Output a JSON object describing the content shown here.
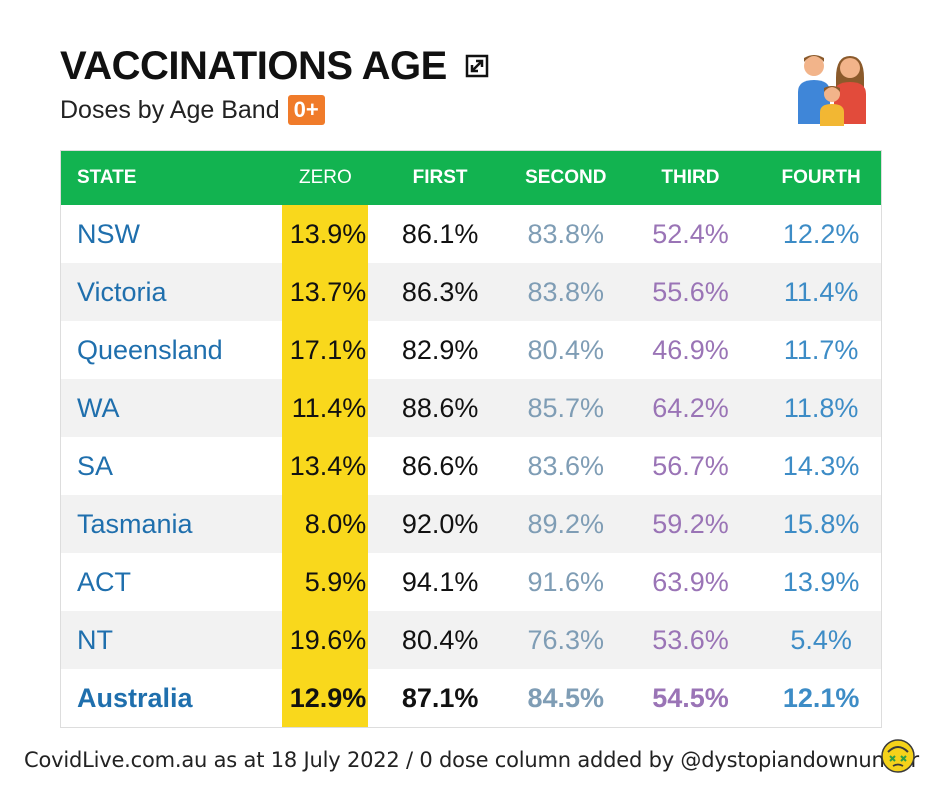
{
  "header": {
    "title": "VACCINATIONS AGE",
    "subtitle": "Doses by Age Band",
    "badge": "0+"
  },
  "icons": {
    "expand": "expand-icon",
    "family": "family-icon",
    "emoji": "dizzy-face-emoji-icon"
  },
  "colors": {
    "header_green": "#12b350",
    "zero_highlight": "#f9d81c",
    "badge_orange": "#f07b2a",
    "state_blue": "#1f6fad",
    "second_grayblue": "#7f9db5",
    "third_purple": "#9a74b6",
    "fourth_blue": "#3d8cc6"
  },
  "table": {
    "columns": [
      "STATE",
      "ZERO",
      "FIRST",
      "SECOND",
      "THIRD",
      "FOURTH"
    ],
    "rows": [
      {
        "state": "NSW",
        "zero": "13.9%",
        "first": "86.1%",
        "second": "83.8%",
        "third": "52.4%",
        "fourth": "12.2%"
      },
      {
        "state": "Victoria",
        "zero": "13.7%",
        "first": "86.3%",
        "second": "83.8%",
        "third": "55.6%",
        "fourth": "11.4%"
      },
      {
        "state": "Queensland",
        "zero": "17.1%",
        "first": "82.9%",
        "second": "80.4%",
        "third": "46.9%",
        "fourth": "11.7%"
      },
      {
        "state": "WA",
        "zero": "11.4%",
        "first": "88.6%",
        "second": "85.7%",
        "third": "64.2%",
        "fourth": "11.8%"
      },
      {
        "state": "SA",
        "zero": "13.4%",
        "first": "86.6%",
        "second": "83.6%",
        "third": "56.7%",
        "fourth": "14.3%"
      },
      {
        "state": "Tasmania",
        "zero": "8.0%",
        "first": "92.0%",
        "second": "89.2%",
        "third": "59.2%",
        "fourth": "15.8%"
      },
      {
        "state": "ACT",
        "zero": "5.9%",
        "first": "94.1%",
        "second": "91.6%",
        "third": "63.9%",
        "fourth": "13.9%"
      },
      {
        "state": "NT",
        "zero": "19.6%",
        "first": "80.4%",
        "second": "76.3%",
        "third": "53.6%",
        "fourth": "5.4%"
      },
      {
        "state": "Australia",
        "zero": "12.9%",
        "first": "87.1%",
        "second": "84.5%",
        "third": "54.5%",
        "fourth": "12.1%"
      }
    ]
  },
  "footer": {
    "text": "CovidLive.com.au as at 18 July 2022 / 0 dose column added by @dystopiandownunder"
  }
}
